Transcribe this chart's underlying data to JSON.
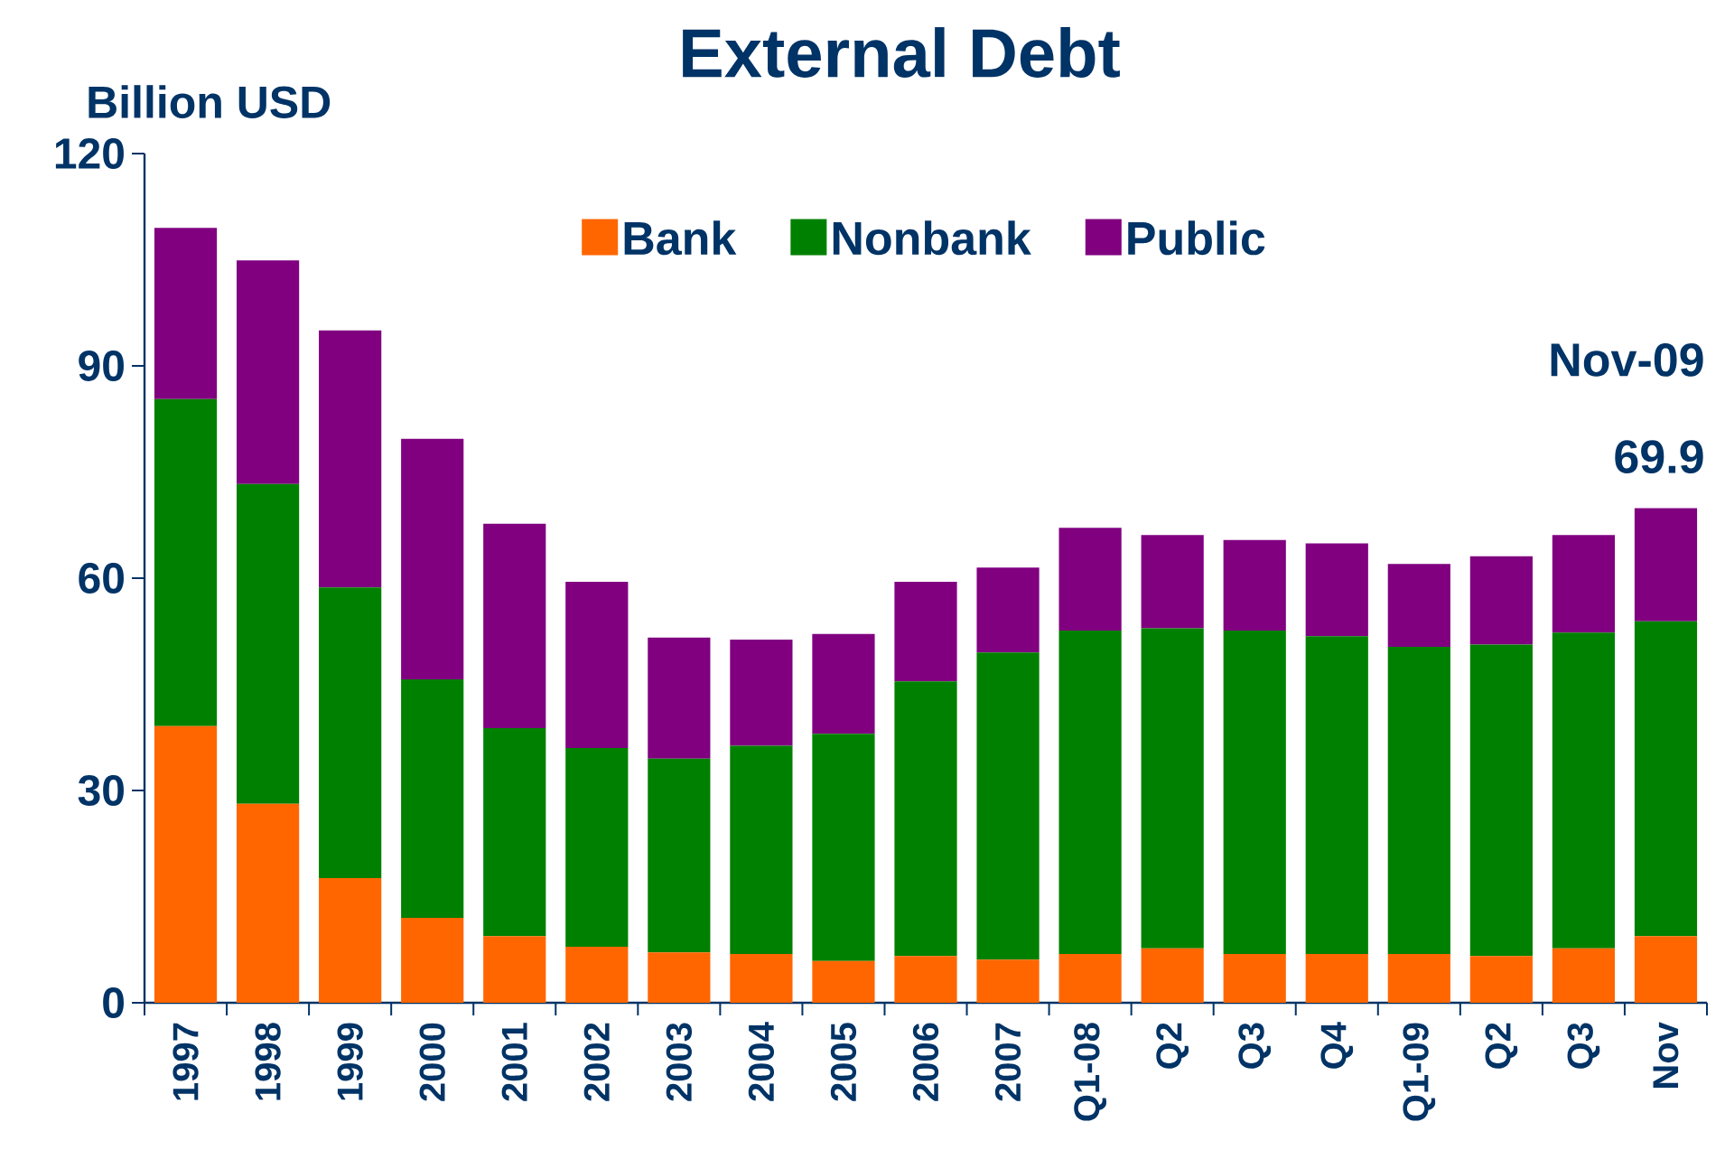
{
  "chart_data": {
    "type": "bar",
    "title": "External Debt",
    "ylabel": "Billion USD",
    "categories": [
      "1997",
      "1998",
      "1999",
      "2000",
      "2001",
      "2002",
      "2003",
      "2004",
      "2005",
      "2006",
      "2007",
      "Q1-08",
      "Q2",
      "Q3",
      "Q4",
      "Q1-09",
      "Q2",
      "Q3",
      "Nov"
    ],
    "series": [
      {
        "name": "Bank",
        "color": "#ff6600",
        "values": [
          39.1,
          28.1,
          17.6,
          12.0,
          9.4,
          7.9,
          7.1,
          6.9,
          5.9,
          6.6,
          6.1,
          6.9,
          7.7,
          6.9,
          6.9,
          6.9,
          6.6,
          7.7,
          9.4
        ]
      },
      {
        "name": "Nonbank",
        "color": "#008000",
        "values": [
          46.2,
          45.2,
          41.1,
          33.7,
          29.4,
          28.1,
          27.4,
          29.4,
          32.1,
          38.8,
          43.4,
          45.7,
          45.2,
          45.7,
          44.9,
          43.4,
          44.0,
          44.6,
          44.5
        ]
      },
      {
        "name": "Public",
        "color": "#800080",
        "values": [
          24.2,
          31.6,
          36.3,
          34.0,
          28.9,
          23.5,
          17.1,
          15.0,
          14.1,
          14.1,
          12.0,
          14.5,
          13.2,
          12.8,
          13.1,
          11.7,
          12.5,
          13.8,
          16.0
        ]
      }
    ],
    "stacked": true,
    "ylim": [
      0,
      120
    ],
    "yticks": [
      0,
      30,
      60,
      90,
      120
    ],
    "legend": "top",
    "annotations": [
      "Nov-09",
      {
        "text": "69.9",
        "x": "Nov",
        "y": 69.9
      }
    ]
  }
}
